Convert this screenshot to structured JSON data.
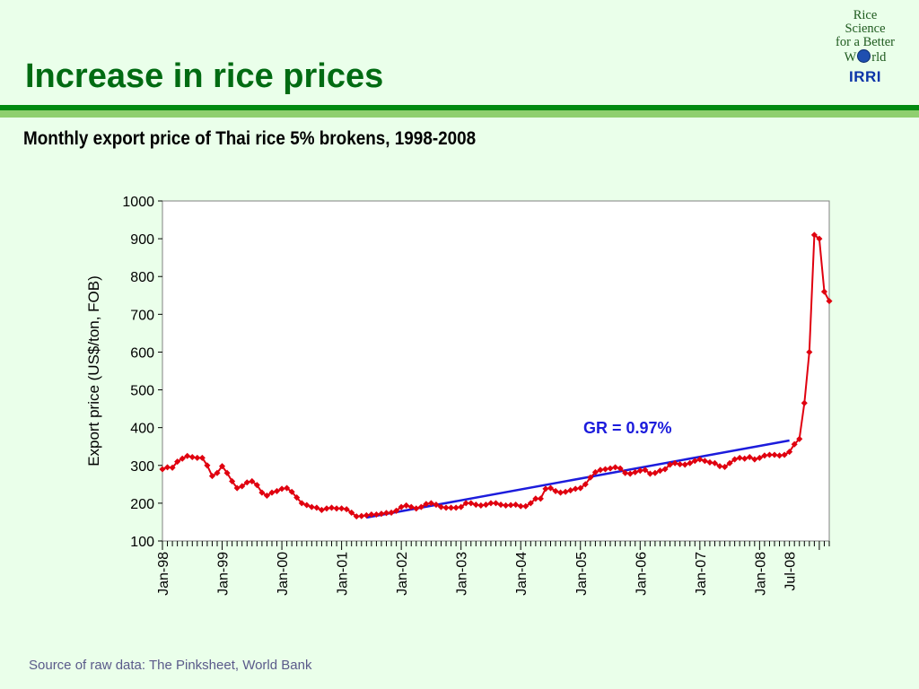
{
  "slide": {
    "title": "Increase in rice prices",
    "subtitle": "Monthly export price of Thai rice 5% brokens, 1998-2008",
    "source": "Source of raw data: The Pinksheet, World Bank"
  },
  "logo": {
    "line1": "Rice",
    "line2": "Science",
    "line3": "for a Better",
    "line4_left": "W",
    "line4_right": "rld",
    "brand": "IRRI"
  },
  "colors": {
    "title": "#006b12",
    "price_series": "#e0000f",
    "trend": "#1c1cdc",
    "annotation": "#1c1cdc"
  },
  "chart_data": {
    "type": "line",
    "ylabel": "Export price (US$/ton, FOB)",
    "xlabel": "",
    "ylim": [
      100,
      1000
    ],
    "yticks": [
      100,
      200,
      300,
      400,
      500,
      600,
      700,
      800,
      900,
      1000
    ],
    "grid": false,
    "x_start": "Jan-98",
    "xtick_labels": [
      "Jan-98",
      "Jan-99",
      "Jan-00",
      "Jan-01",
      "Jan-02",
      "Jan-03",
      "Jan-04",
      "Jan-05",
      "Jan-06",
      "Jan-07",
      "Jan-08",
      "Jul-08"
    ],
    "annotation": "GR = 0.97%",
    "series": [
      {
        "values": [
          290,
          295,
          294,
          310,
          318,
          325,
          322,
          320,
          320,
          300,
          272,
          280,
          298,
          280,
          258,
          240,
          245,
          255,
          258,
          248,
          228,
          220,
          228,
          232,
          238,
          240,
          230,
          215,
          200,
          195,
          190,
          188,
          182,
          186,
          188,
          186,
          186,
          184,
          175,
          165,
          166,
          168,
          170,
          170,
          172,
          174,
          175,
          180,
          190,
          194,
          190,
          186,
          190,
          198,
          200,
          196,
          190,
          188,
          188,
          188,
          190,
          200,
          200,
          196,
          194,
          196,
          200,
          200,
          196,
          194,
          195,
          196,
          192,
          192,
          200,
          212,
          212,
          238,
          240,
          232,
          228,
          230,
          234,
          238,
          240,
          250,
          268,
          282,
          288,
          290,
          292,
          295,
          292,
          280,
          278,
          282,
          286,
          288,
          278,
          280,
          286,
          290,
          302,
          306,
          303,
          302,
          306,
          312,
          316,
          312,
          308,
          306,
          298,
          296,
          306,
          316,
          320,
          318,
          322,
          316,
          320,
          326,
          328,
          328,
          326,
          328,
          336,
          356,
          370,
          465,
          600,
          910,
          900,
          760,
          735
        ]
      }
    ],
    "trend": {
      "x_start": "Jun-01",
      "x_end": "Jul-08",
      "start": 162,
      "end": 366
    }
  }
}
